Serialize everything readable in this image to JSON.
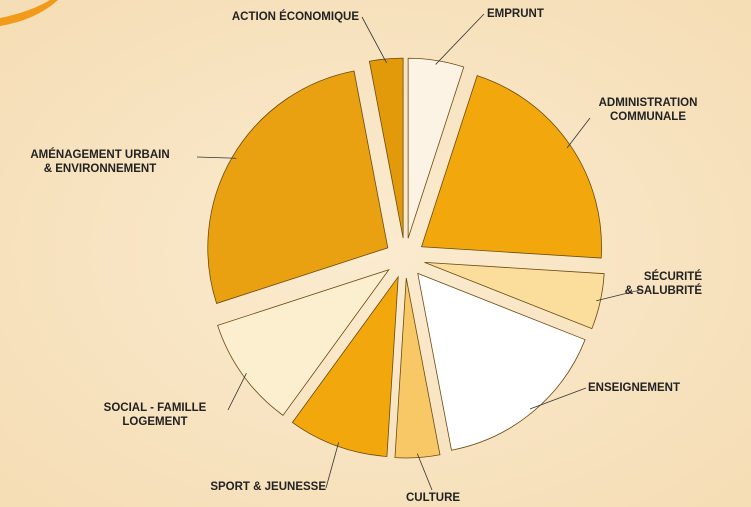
{
  "chart_data": {
    "type": "pie",
    "categories": [
      "EMPRUNT",
      "ADMINISTRATION\nCOMMUNALE",
      "SÉCURITÉ\n& SALUBRITÉ",
      "ENSEIGNEMENT",
      "CULTURE",
      "SPORT & JEUNESSE",
      "SOCIAL - FAMILLE\nLOGEMENT",
      "AMÉNAGEMENT URBAIN\n& ENVIRONNEMENT",
      "ACTION ÉCONOMIQUE"
    ],
    "values": [
      5,
      21,
      5,
      16,
      4,
      9,
      10,
      27,
      3
    ],
    "colors": [
      "#fdf3e4",
      "#f2a70d",
      "#fbdd9c",
      "#ffffff",
      "#f7c865",
      "#f2a70d",
      "#fcefcf",
      "#e9a112",
      "#e29a0a"
    ]
  }
}
